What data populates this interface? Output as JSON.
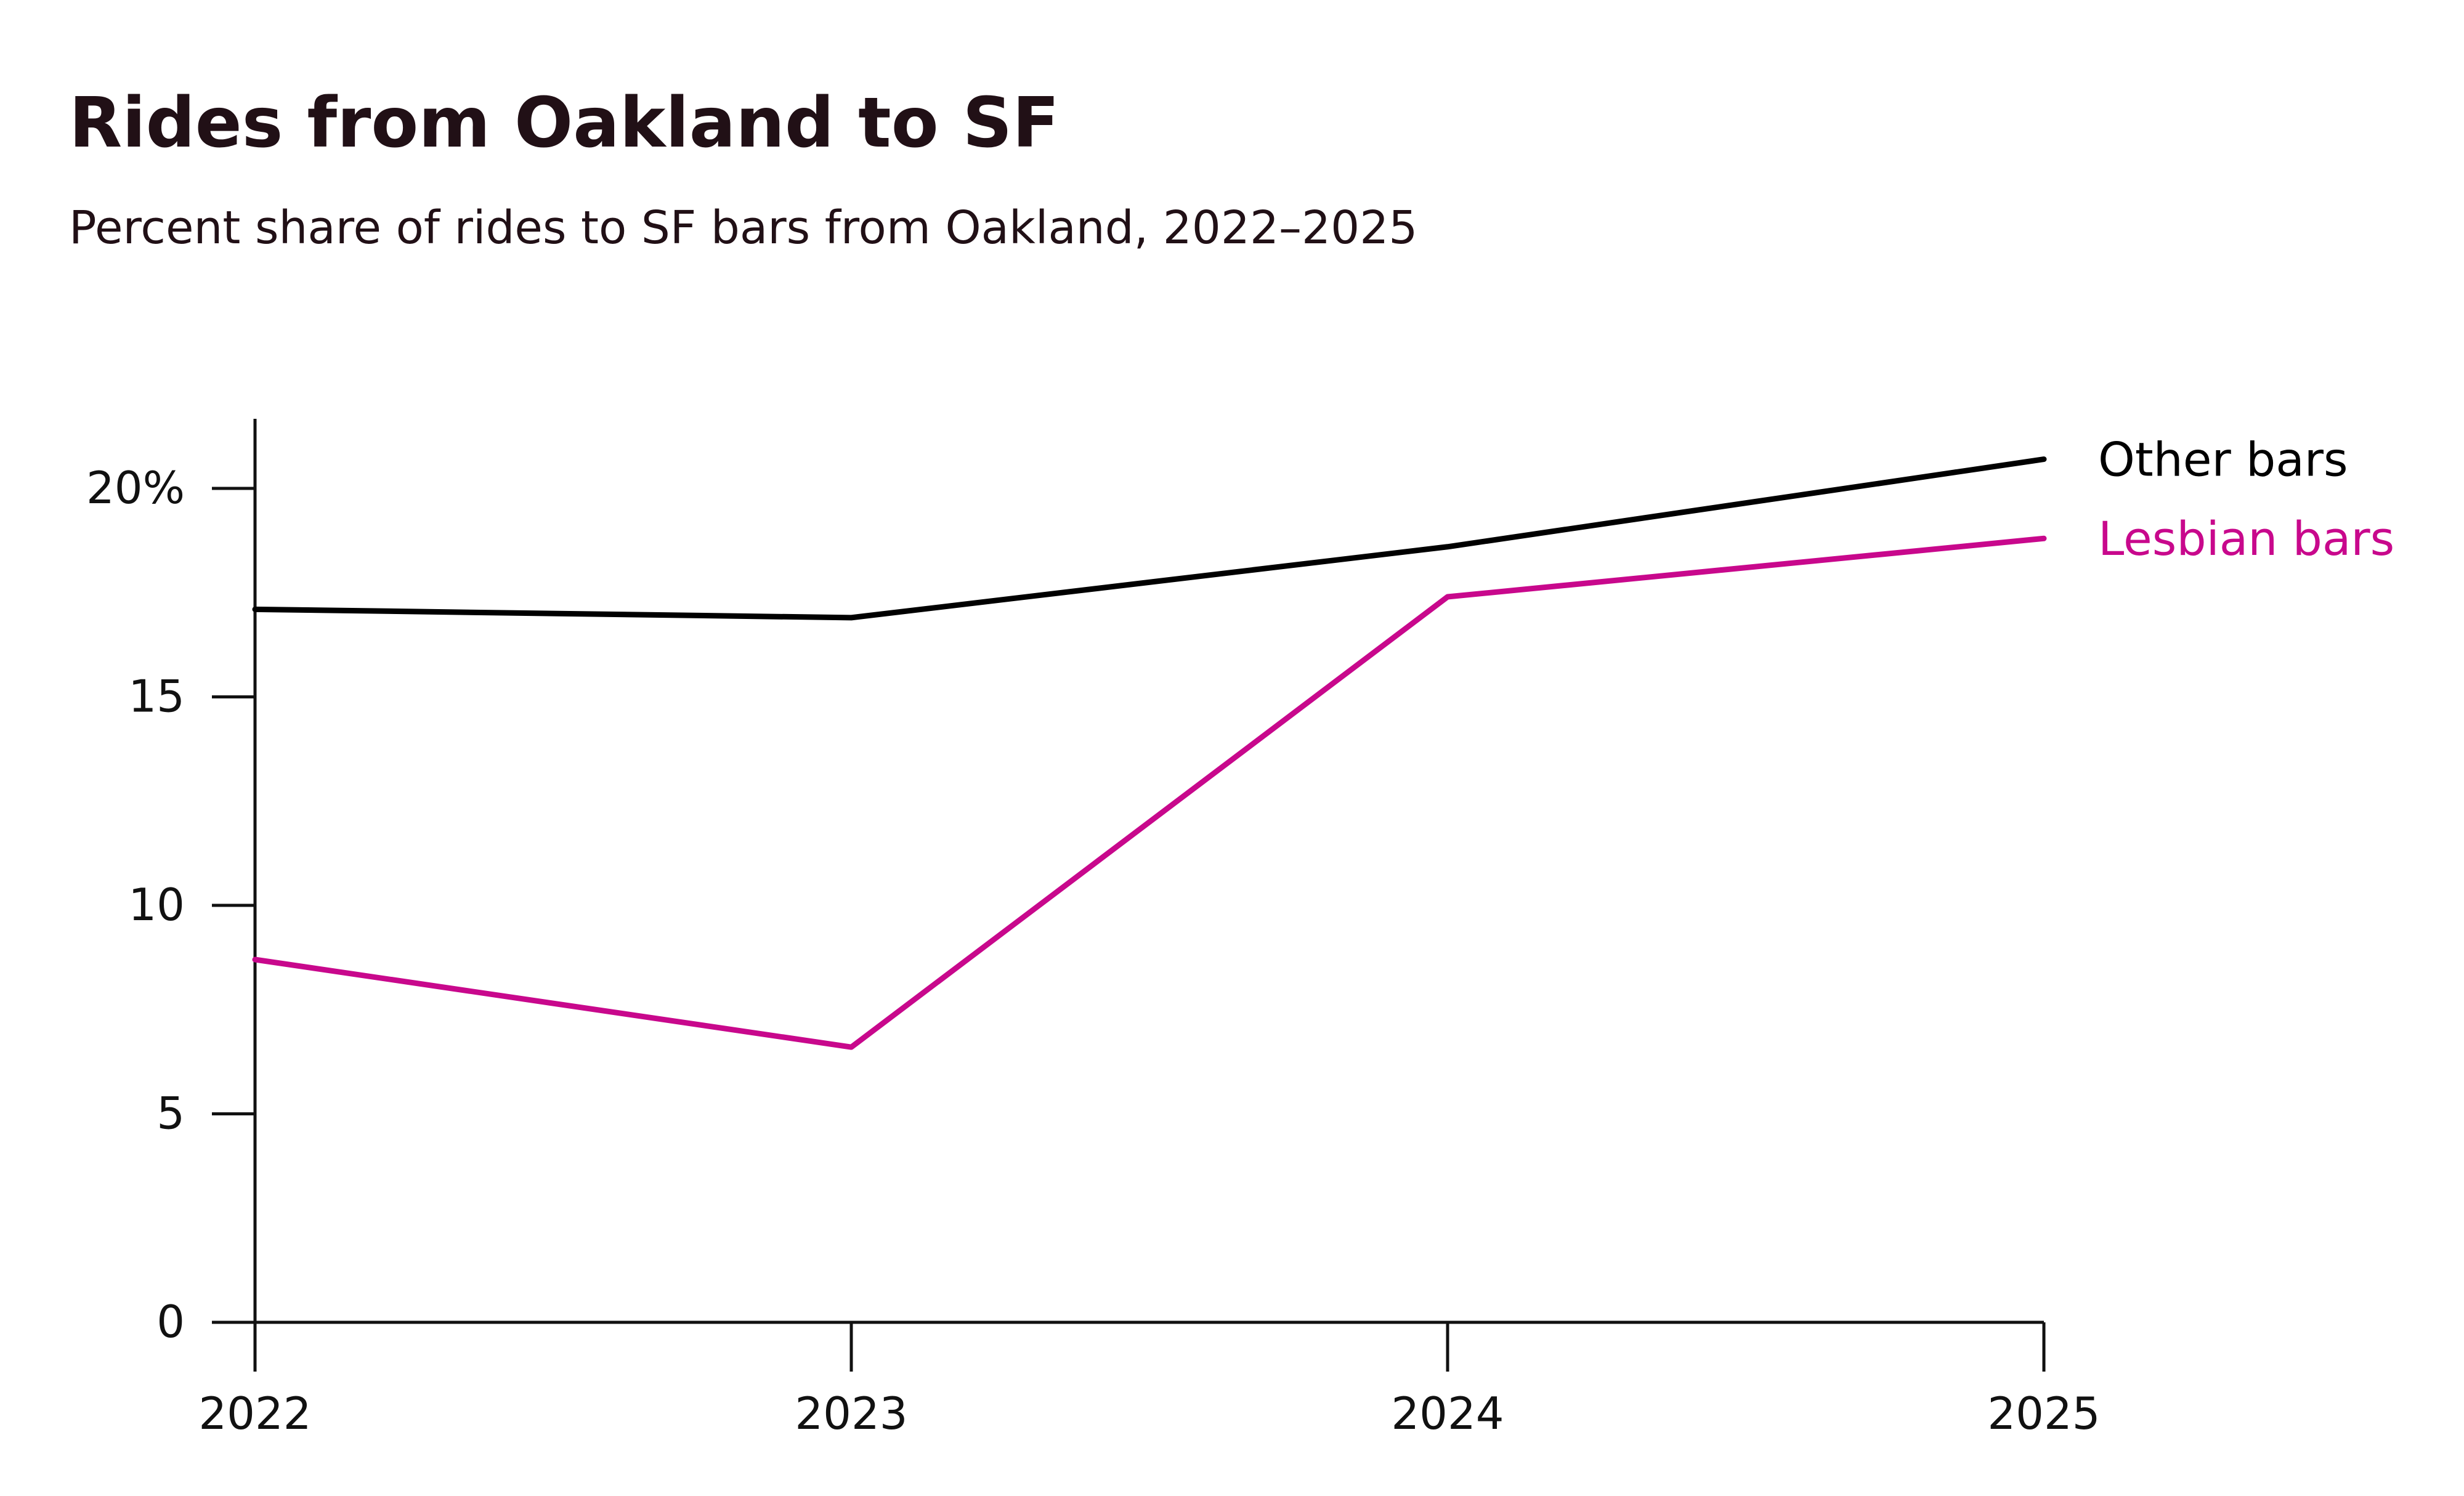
{
  "chart_data": {
    "type": "line",
    "title": "Rides from Oakland to SF",
    "subtitle": "Percent share of rides to SF bars from Oakland, 2022–2025",
    "xlabel": "",
    "ylabel": "",
    "x": [
      "2022",
      "2023",
      "2024",
      "2025"
    ],
    "ylim": [
      0,
      21.5
    ],
    "yticks": [
      0,
      5,
      10,
      15,
      20
    ],
    "ytick_labels": [
      "0",
      "5",
      "10",
      "15",
      "20%"
    ],
    "grid": false,
    "legend": "direct labels at right end of lines",
    "series": [
      {
        "name": "Other bars",
        "color": "#000000",
        "values": [
          17.1,
          16.9,
          18.6,
          20.7
        ]
      },
      {
        "name": "Lesbian bars",
        "color": "#c8088c",
        "values": [
          8.7,
          6.6,
          17.4,
          18.8
        ]
      }
    ]
  }
}
